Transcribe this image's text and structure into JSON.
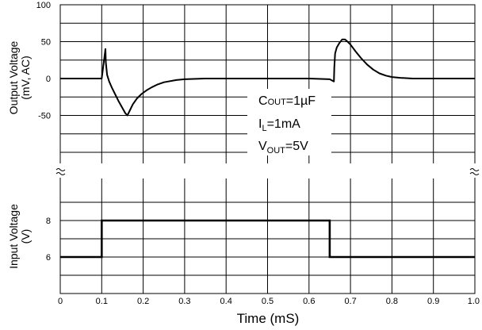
{
  "chart_data": [
    {
      "type": "line",
      "panel": "output",
      "ylabel_line1": "Output Voltage",
      "ylabel_line2": "(mV, AC)",
      "ylim": [
        -100,
        100
      ],
      "yticks": [
        -50,
        0,
        50,
        100
      ],
      "ytick_labels": [
        "-50",
        "0",
        "50",
        "100"
      ],
      "xlim": [
        0,
        1.0
      ],
      "grid": true,
      "annotation": {
        "cout_main": "C",
        "cout_sub": "OUT",
        "cout_val": "=1µF",
        "il_main": "I",
        "il_sub": "L",
        "il_val": "=1mA",
        "vout_main": "V",
        "vout_sub": "OUT",
        "vout_val": "=5V"
      },
      "series": [
        {
          "x": [
            0.0,
            0.09,
            0.1,
            0.109,
            0.11,
            0.113,
            0.118,
            0.125,
            0.133,
            0.141,
            0.149,
            0.157,
            0.162,
            0.168,
            0.175,
            0.185,
            0.196,
            0.208,
            0.22,
            0.235,
            0.25,
            0.28,
            0.3,
            0.35,
            0.4,
            0.5,
            0.6,
            0.65,
            0.66,
            0.661,
            0.663,
            0.667,
            0.673,
            0.68,
            0.687,
            0.693,
            0.7,
            0.712,
            0.725,
            0.74,
            0.755,
            0.77,
            0.785,
            0.8,
            0.82,
            0.85,
            0.9,
            1.0
          ],
          "y": [
            0,
            0,
            0,
            40,
            22,
            5,
            -4,
            -13,
            -22,
            -31,
            -39,
            -47,
            -50,
            -43,
            -35,
            -27,
            -21,
            -16,
            -12,
            -8,
            -5,
            -2,
            -1,
            0,
            0,
            0,
            0,
            -1,
            -4,
            15,
            34,
            42,
            48,
            53,
            53,
            50,
            46,
            37,
            28,
            19,
            12,
            7,
            4,
            2,
            1,
            0,
            0,
            0
          ]
        }
      ]
    },
    {
      "type": "line",
      "panel": "input",
      "ylabel_line1": "Input Voltage",
      "ylabel_line2": "(V)",
      "ylim": [
        4,
        10
      ],
      "yticks": [
        6,
        8
      ],
      "ytick_labels": [
        "6",
        "8"
      ],
      "xlabel": "Time (mS)",
      "xlim": [
        0,
        1.0
      ],
      "xticks": [
        0,
        0.1,
        0.2,
        0.3,
        0.4,
        0.5,
        0.6,
        0.7,
        0.8,
        0.9,
        1.0
      ],
      "xtick_labels": [
        "0",
        "0.1",
        "0.2",
        "0.3",
        "0.4",
        "0.5",
        "0.6",
        "0.7",
        "0.8",
        "0.9",
        "1.0"
      ],
      "grid": true,
      "series": [
        {
          "x": [
            0.0,
            0.1,
            0.1,
            0.65,
            0.65,
            1.0
          ],
          "y": [
            6,
            6,
            8,
            8,
            6,
            6
          ]
        }
      ]
    }
  ]
}
